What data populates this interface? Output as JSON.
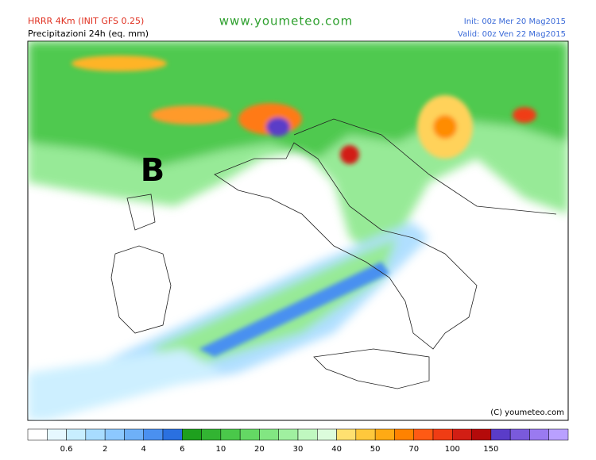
{
  "header": {
    "model": "HRRR 4Km (INIT GFS 0.25)",
    "field": "Precipitazioni 24h (eq. mm)",
    "site": "www.youmeteo.com",
    "init": "Init: 00z Mer 20 Mag2015",
    "valid": "Valid: 00z Ven 22 Mag2015"
  },
  "map": {
    "low_label": "B",
    "copyright": "(C) youmeteo.com"
  },
  "legend": {
    "labels": [
      "0.6",
      "2",
      "4",
      "6",
      "10",
      "20",
      "30",
      "40",
      "50",
      "70",
      "100",
      "150"
    ],
    "colors": [
      "#ffffff",
      "#e6f8ff",
      "#c8eeff",
      "#a8dcff",
      "#8cc8ff",
      "#6eb0f8",
      "#4a90f0",
      "#2a70e0",
      "#1ea01e",
      "#32b432",
      "#4ac84a",
      "#64d864",
      "#82e682",
      "#a0f0a0",
      "#c0f8c0",
      "#dcfcdc",
      "#ffe070",
      "#ffc83c",
      "#ffaa14",
      "#ff8200",
      "#ff5a14",
      "#f03c14",
      "#d21e14",
      "#b40a0a",
      "#5a3cc8",
      "#7a5adc",
      "#9a7af0",
      "#b9a0ff"
    ]
  }
}
